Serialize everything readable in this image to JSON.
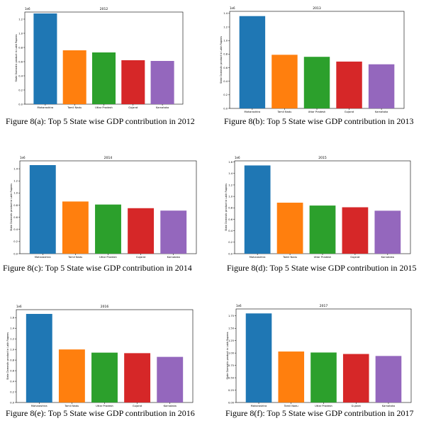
{
  "figure": {
    "panels": [
      {
        "caption": "Figure 8(a): Top 5 State wise GDP contribution in 2012",
        "chart_ref": 0
      },
      {
        "caption": "Figure 8(b): Top 5 State wise GDP contribution in 2013",
        "chart_ref": 1
      },
      {
        "caption": "Figure 8(c): Top 5 State wise GDP contribution in 2014",
        "chart_ref": 2
      },
      {
        "caption": "Figure 8(d): Top 5 State wise GDP contribution in 2015",
        "chart_ref": 3
      },
      {
        "caption": "Figure 8(e): Top 5 State wise GDP contribution in 2016",
        "chart_ref": 4
      },
      {
        "caption": "Figure 8(f): Top 5 State wise GDP contribution in 2017",
        "chart_ref": 5
      }
    ]
  },
  "colors": [
    "#1f77b4",
    "#ff7f0e",
    "#2ca02c",
    "#d62728",
    "#9467bd"
  ],
  "chart_data": [
    {
      "type": "bar",
      "title": "2012",
      "ylabel": "State Domestic product in Lakh Rupees",
      "offset_label": "1e6",
      "categories": [
        "Maharashtra",
        "Tamil Nadu",
        "Uttar Pradesh",
        "Gujarat",
        "Karnataka"
      ],
      "values": [
        1.28,
        0.76,
        0.73,
        0.62,
        0.61
      ],
      "ylim": [
        0,
        1.3
      ],
      "yticks": [
        "0.0",
        "0.2",
        "0.4",
        "0.6",
        "0.8",
        "1.0",
        "1.2"
      ],
      "ytick_values": [
        0,
        0.2,
        0.4,
        0.6,
        0.8,
        1.0,
        1.2
      ],
      "grid": false
    },
    {
      "type": "bar",
      "title": "2013",
      "ylabel": "State Domestic product in Lakh Rupees",
      "offset_label": "1e6",
      "categories": [
        "Maharashtra",
        "Tamil Nadu",
        "Uttar Pradesh",
        "Gujarat",
        "Karnataka"
      ],
      "values": [
        1.36,
        0.79,
        0.76,
        0.69,
        0.65
      ],
      "ylim": [
        0,
        1.43
      ],
      "yticks": [
        "0.0",
        "0.2",
        "0.4",
        "0.6",
        "0.8",
        "1.0",
        "1.2",
        "1.4"
      ],
      "ytick_values": [
        0,
        0.2,
        0.4,
        0.6,
        0.8,
        1.0,
        1.2,
        1.4
      ],
      "grid": false
    },
    {
      "type": "bar",
      "title": "2014",
      "ylabel": "State Domestic product in Lakh Rupees",
      "offset_label": "1e6",
      "categories": [
        "Maharashtra",
        "Tamil Nadu",
        "Uttar Pradesh",
        "Gujarat",
        "Karnataka"
      ],
      "values": [
        1.46,
        0.86,
        0.81,
        0.75,
        0.71
      ],
      "ylim": [
        0,
        1.53
      ],
      "yticks": [
        "0.0",
        "0.2",
        "0.4",
        "0.6",
        "0.8",
        "1.0",
        "1.2",
        "1.4"
      ],
      "ytick_values": [
        0,
        0.2,
        0.4,
        0.6,
        0.8,
        1.0,
        1.2,
        1.4
      ],
      "grid": false
    },
    {
      "type": "bar",
      "title": "2015",
      "ylabel": "State Domestic product in Lakh Rupees",
      "offset_label": "1e6",
      "categories": [
        "Maharashtra",
        "Tamil Nadu",
        "Uttar Pradesh",
        "Gujarat",
        "Karnataka"
      ],
      "values": [
        1.54,
        0.89,
        0.84,
        0.81,
        0.75
      ],
      "ylim": [
        0,
        1.62
      ],
      "yticks": [
        "0.0",
        "0.2",
        "0.4",
        "0.6",
        "0.8",
        "1.0",
        "1.2",
        "1.4",
        "1.6"
      ],
      "ytick_values": [
        0,
        0.2,
        0.4,
        0.6,
        0.8,
        1.0,
        1.2,
        1.4,
        1.6
      ],
      "grid": false
    },
    {
      "type": "bar",
      "title": "2016",
      "ylabel": "State Domestic product in Lakh Rupees",
      "offset_label": "1e6",
      "categories": [
        "Maharashtra",
        "Tamil Nadu",
        "Uttar Pradesh",
        "Gujarat",
        "Karnataka"
      ],
      "values": [
        1.67,
        1.0,
        0.94,
        0.93,
        0.86
      ],
      "ylim": [
        0,
        1.75
      ],
      "yticks": [
        "0.0",
        "0.2",
        "0.4",
        "0.6",
        "0.8",
        "1.0",
        "1.2",
        "1.4",
        "1.6"
      ],
      "ytick_values": [
        0,
        0.2,
        0.4,
        0.6,
        0.8,
        1.0,
        1.2,
        1.4,
        1.6
      ],
      "grid": false
    },
    {
      "type": "bar",
      "title": "2017",
      "ylabel": "State Domestic product in Lakh Rupees",
      "offset_label": "1e6",
      "categories": [
        "Maharashtra",
        "Tamil Nadu",
        "Uttar Pradesh",
        "Gujarat",
        "Karnataka"
      ],
      "values": [
        1.8,
        1.03,
        1.01,
        0.98,
        0.94
      ],
      "ylim": [
        0,
        1.89
      ],
      "yticks": [
        "0.00",
        "0.25",
        "0.50",
        "0.75",
        "1.00",
        "1.25",
        "1.50",
        "1.75"
      ],
      "ytick_values": [
        0,
        0.25,
        0.5,
        0.75,
        1.0,
        1.25,
        1.5,
        1.75
      ],
      "grid": false
    }
  ]
}
